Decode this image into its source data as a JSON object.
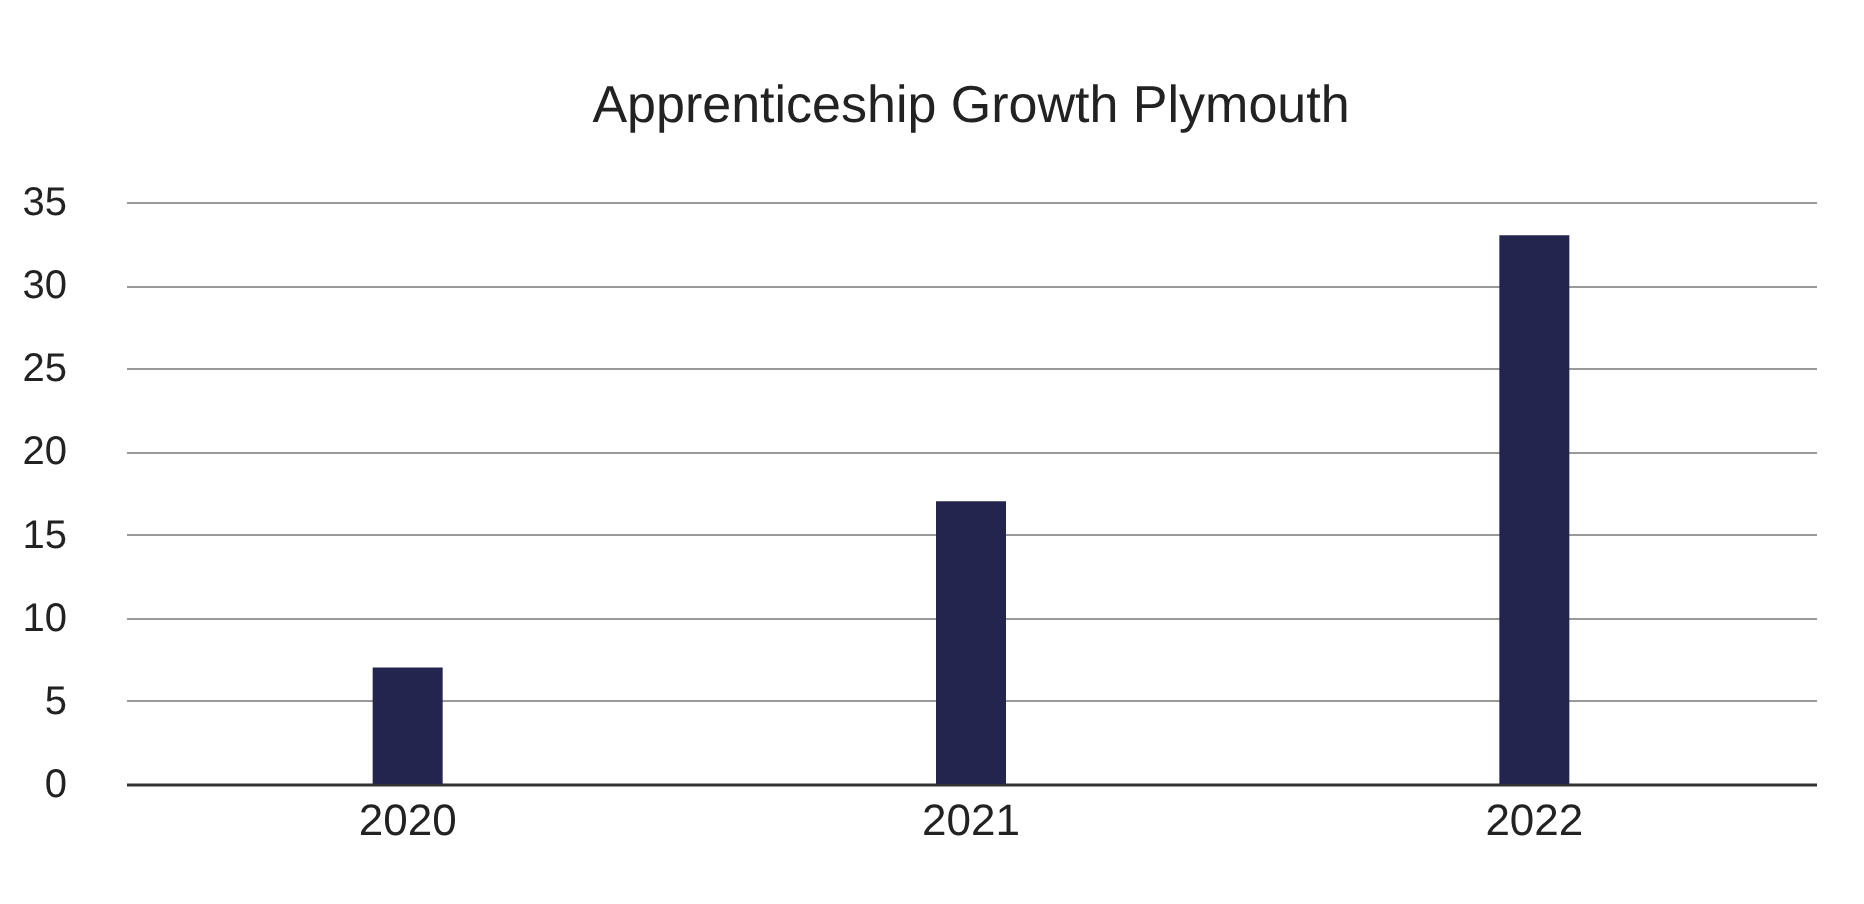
{
  "chart_data": {
    "type": "bar",
    "title": "Apprenticeship Growth Plymouth",
    "categories": [
      "2020",
      "2021",
      "2022"
    ],
    "values": [
      7,
      17,
      33
    ],
    "color": "#23254f",
    "ylim": [
      0,
      35
    ],
    "yticks": [
      0,
      5,
      10,
      15,
      20,
      25,
      30,
      35
    ],
    "grid": "y"
  }
}
